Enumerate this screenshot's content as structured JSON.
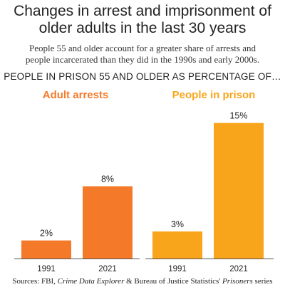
{
  "title_line1": "Changes in arrest and imprisonment of",
  "title_line2": "older adults in the last 30 years",
  "subtitle_line1": "People 55 and older account for a greater share of arrests and",
  "subtitle_line2": "people incarcerated than they did in the 1990s and early 2000s.",
  "section_label": "PEOPLE IN PRISON 55 AND OLDER AS PERCENTAGE OF…",
  "source": {
    "prefix": "Sources: FBI, ",
    "italic1": "Crime Data Explorer",
    "middle": " & Bureau of Justice Statistics' ",
    "italic2": "Prisoners",
    "suffix": " series"
  },
  "colors": {
    "arrests": "#f47a2a",
    "prison": "#f9a51b",
    "axis": "#555555"
  },
  "chart_data": [
    {
      "type": "bar",
      "title": "Adult arrests",
      "categories": [
        "1991",
        "2021"
      ],
      "values": [
        2,
        8
      ],
      "value_labels": [
        "2%",
        "8%"
      ],
      "ylim": [
        0,
        16
      ]
    },
    {
      "type": "bar",
      "title": "People in prison",
      "categories": [
        "1991",
        "2021"
      ],
      "values": [
        3,
        15
      ],
      "value_labels": [
        "3%",
        "15%"
      ],
      "ylim": [
        0,
        16
      ]
    }
  ]
}
